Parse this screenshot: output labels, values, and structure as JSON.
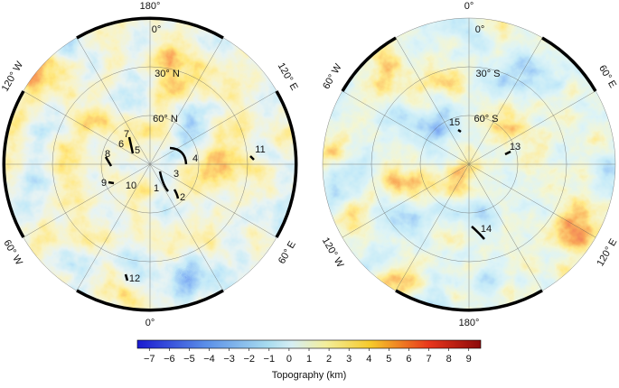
{
  "maps": [
    {
      "rim_labels": [
        "180°",
        "120° W",
        "120° E",
        "60° W",
        "60° E",
        "0°"
      ],
      "grid_labels": [
        "0°",
        "30° N",
        "60° N"
      ],
      "features": [
        "1",
        "2",
        "3",
        "4",
        "5",
        "6",
        "7",
        "8",
        "9",
        "10",
        "11",
        "12"
      ]
    },
    {
      "rim_labels": [
        "0°",
        "60° W",
        "60° E",
        "120° W",
        "120° E",
        "180°"
      ],
      "grid_labels": [
        "0°",
        "30° S",
        "60° S"
      ],
      "features": [
        "13",
        "14",
        "15"
      ]
    }
  ],
  "colorbar": {
    "lim": [
      -7.6,
      9.6
    ],
    "ticks": [
      {
        "value": -7,
        "label": "−7"
      },
      {
        "value": -6,
        "label": "−6"
      },
      {
        "value": -5,
        "label": "−5"
      },
      {
        "value": -4,
        "label": "−4"
      },
      {
        "value": -3,
        "label": "−3"
      },
      {
        "value": -2,
        "label": "−2"
      },
      {
        "value": -1,
        "label": "−1"
      },
      0,
      1,
      2,
      3,
      4,
      5,
      6,
      7,
      8,
      9
    ],
    "label": "Topography (km)"
  }
}
